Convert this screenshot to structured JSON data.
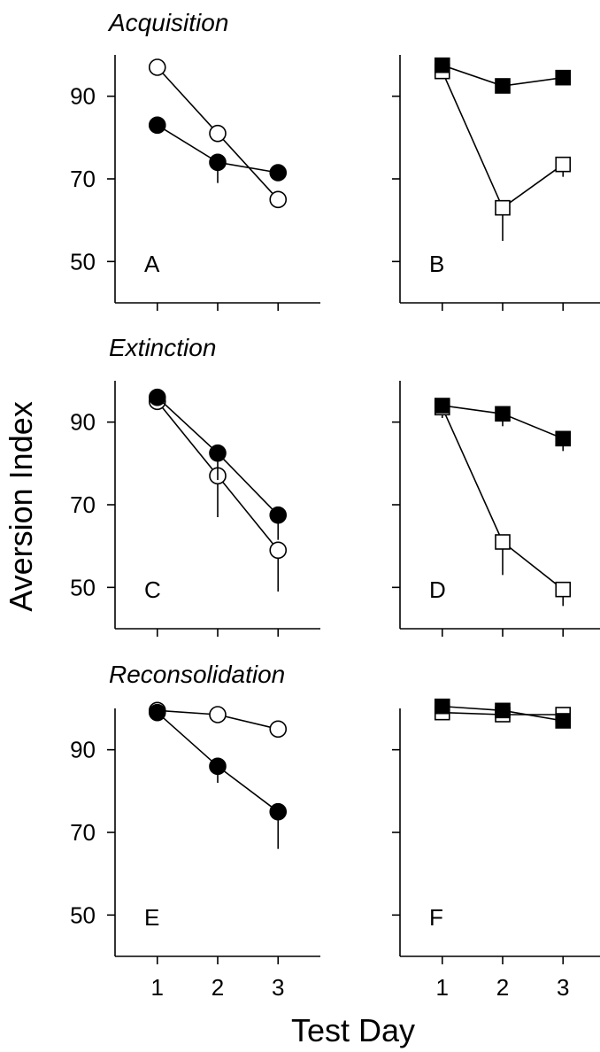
{
  "figure": {
    "ylabel": "Aversion Index",
    "xlabel": "Test Day",
    "row_titles": [
      "Acquisition",
      "Extinction",
      "Reconsolidation"
    ],
    "colors": {
      "ink": "#000000",
      "open_fill": "#ffffff",
      "filled": "#000000"
    }
  },
  "chart_data": [
    {
      "panel": "A",
      "type": "line",
      "row_title": "Acquisition",
      "x": [
        1,
        2,
        3
      ],
      "xlim": [
        0.3,
        3.7
      ],
      "ylim": [
        40,
        100
      ],
      "yticks": [
        50,
        70,
        90
      ],
      "ytick_labels_shown": true,
      "xtick_labels_shown": false,
      "series": [
        {
          "marker": "circle",
          "fill": "open",
          "values": [
            97,
            81,
            65
          ],
          "err": [
            0,
            0,
            0
          ]
        },
        {
          "marker": "circle",
          "fill": "filled",
          "values": [
            83,
            74,
            71.5
          ],
          "err": [
            0,
            5,
            0
          ]
        }
      ]
    },
    {
      "panel": "B",
      "type": "line",
      "row_title": "Acquisition",
      "x": [
        1,
        2,
        3
      ],
      "xlim": [
        0.3,
        3.7
      ],
      "ylim": [
        40,
        100
      ],
      "yticks": [
        50,
        70,
        90
      ],
      "ytick_labels_shown": false,
      "xtick_labels_shown": false,
      "series": [
        {
          "marker": "square",
          "fill": "open",
          "values": [
            96,
            63,
            73.5
          ],
          "err": [
            0,
            8,
            3
          ]
        },
        {
          "marker": "square",
          "fill": "filled",
          "values": [
            97.5,
            92.5,
            94.5
          ],
          "err": [
            0,
            0,
            0
          ]
        }
      ]
    },
    {
      "panel": "C",
      "type": "line",
      "row_title": "Extinction",
      "x": [
        1,
        2,
        3
      ],
      "xlim": [
        0.3,
        3.7
      ],
      "ylim": [
        40,
        100
      ],
      "yticks": [
        50,
        70,
        90
      ],
      "ytick_labels_shown": true,
      "xtick_labels_shown": false,
      "series": [
        {
          "marker": "circle",
          "fill": "open",
          "values": [
            95,
            77,
            59
          ],
          "err": [
            0,
            10,
            10
          ]
        },
        {
          "marker": "circle",
          "fill": "filled",
          "values": [
            96,
            82.5,
            67.5
          ],
          "err": [
            0,
            6.5,
            6
          ]
        }
      ]
    },
    {
      "panel": "D",
      "type": "line",
      "row_title": "Extinction",
      "x": [
        1,
        2,
        3
      ],
      "xlim": [
        0.3,
        3.7
      ],
      "ylim": [
        40,
        100
      ],
      "yticks": [
        50,
        70,
        90
      ],
      "ytick_labels_shown": false,
      "xtick_labels_shown": false,
      "series": [
        {
          "marker": "square",
          "fill": "open",
          "values": [
            93.5,
            61,
            49.5
          ],
          "err": [
            2.5,
            8,
            4
          ]
        },
        {
          "marker": "square",
          "fill": "filled",
          "values": [
            94,
            92,
            86
          ],
          "err": [
            0,
            3,
            3
          ]
        }
      ]
    },
    {
      "panel": "E",
      "type": "line",
      "row_title": "Reconsolidation",
      "x": [
        1,
        2,
        3
      ],
      "xlim": [
        0.3,
        3.7
      ],
      "ylim": [
        40,
        100
      ],
      "yticks": [
        50,
        70,
        90
      ],
      "ytick_labels_shown": true,
      "xtick_labels_shown": true,
      "series": [
        {
          "marker": "circle",
          "fill": "open",
          "values": [
            99.5,
            98.5,
            95
          ],
          "err": [
            0,
            0,
            0
          ]
        },
        {
          "marker": "circle",
          "fill": "filled",
          "values": [
            99,
            86,
            75
          ],
          "err": [
            0,
            4,
            9
          ]
        }
      ]
    },
    {
      "panel": "F",
      "type": "line",
      "row_title": "Reconsolidation",
      "x": [
        1,
        2,
        3
      ],
      "xlim": [
        0.3,
        3.7
      ],
      "ylim": [
        40,
        100
      ],
      "yticks": [
        50,
        70,
        90
      ],
      "ytick_labels_shown": false,
      "xtick_labels_shown": true,
      "series": [
        {
          "marker": "square",
          "fill": "open",
          "values": [
            99,
            98.5,
            98.5
          ],
          "err": [
            0,
            0,
            0
          ]
        },
        {
          "marker": "square",
          "fill": "filled",
          "values": [
            100.5,
            99.5,
            97
          ],
          "err": [
            0,
            0,
            0
          ]
        }
      ]
    }
  ]
}
